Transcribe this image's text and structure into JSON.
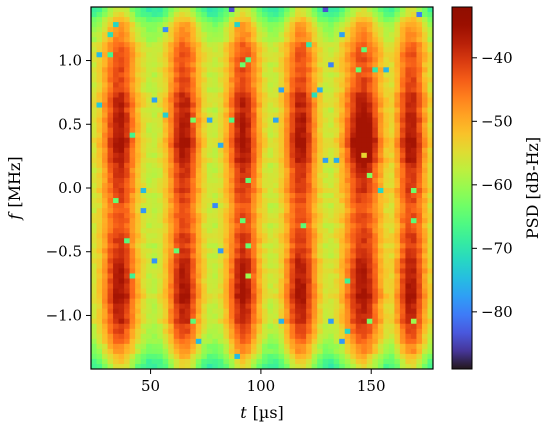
{
  "chart_data": {
    "type": "heatmap",
    "title": "",
    "x_axis": {
      "label_var": "t",
      "label_unit": "[µs]",
      "ticks": [
        "50",
        "100",
        "150"
      ],
      "tick_values": [
        50,
        100,
        150
      ],
      "range": [
        23,
        178
      ]
    },
    "y_axis": {
      "label_var": "f",
      "label_unit": "[MHz]",
      "ticks": [
        "−1.0",
        "−0.5",
        "0.0",
        "0.5",
        "1.0"
      ],
      "tick_values": [
        -1.0,
        -0.5,
        0.0,
        0.5,
        1.0
      ],
      "range": [
        -1.42,
        1.42
      ]
    },
    "colorbar": {
      "label": "PSD [dB-Hz]",
      "ticks": [
        "−40",
        "−50",
        "−60",
        "−70",
        "−80"
      ],
      "tick_values": [
        -40,
        -50,
        -60,
        -70,
        -80
      ],
      "range": [
        -89,
        -32
      ],
      "colormap": "turbo"
    },
    "burst_centers_us": [
      36,
      65,
      92,
      118,
      146,
      168
    ],
    "burst_widths_us": [
      8,
      7.5,
      7.5,
      7.5,
      9,
      7
    ],
    "band_centers_mhz": [
      -0.8,
      0.4
    ],
    "hotspot": {
      "t_us": 147,
      "f_mhz": 0.35,
      "psd_db_hz": -36
    },
    "level_range_db_hz": [
      -84,
      -36
    ],
    "grid": false
  }
}
